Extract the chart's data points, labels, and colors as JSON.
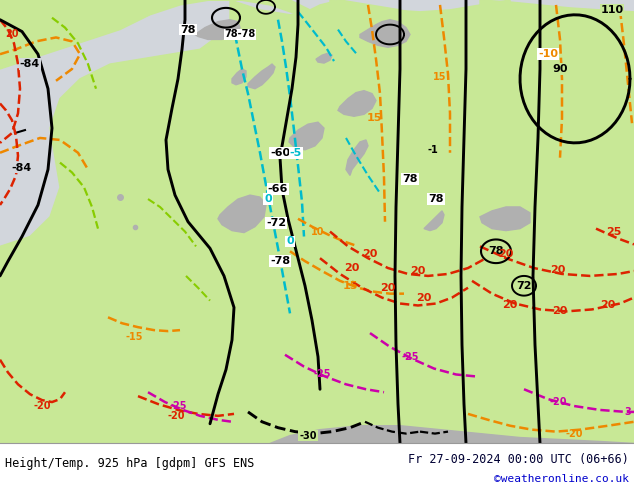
{
  "title_left": "Height/Temp. 925 hPa [gdpm] GFS ENS",
  "title_right": "Fr 27-09-2024 00:00 UTC (06+66)",
  "credit": "©weatheronline.co.uk",
  "bg_green": "#c8e896",
  "bg_sea": "#d2d6dc",
  "bg_land_gray": "#b0b0b0",
  "geo_color": "#000000",
  "temp_cyan": "#00bbcc",
  "temp_orange": "#ee8800",
  "temp_lgreen": "#88cc00",
  "temp_red": "#dd2200",
  "temp_magenta": "#cc00aa",
  "footer_text_color": "#000033",
  "credit_color": "#0000cc"
}
